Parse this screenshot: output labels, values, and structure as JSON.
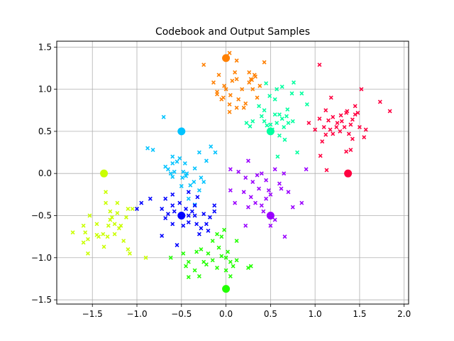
{
  "chart_data": {
    "type": "scatter",
    "title": "Codebook and Output Samples",
    "xlabel": "",
    "ylabel": "",
    "xlim": [
      -1.9,
      2.05
    ],
    "ylim": [
      -1.55,
      1.57
    ],
    "xticks": [
      -1.5,
      -1.0,
      -0.5,
      0.0,
      0.5,
      1.0,
      1.5,
      2.0
    ],
    "xtick_labels": [
      "−1.5",
      "−1.0",
      "−0.5",
      "0.0",
      "0.5",
      "1.0",
      "1.5",
      "2.0"
    ],
    "yticks": [
      -1.5,
      -1.0,
      -0.5,
      0.0,
      0.5,
      1.0,
      1.5
    ],
    "ytick_labels": [
      "−1.5",
      "−1.0",
      "−0.5",
      "0.0",
      "0.5",
      "1.0",
      "1.5"
    ],
    "grid": true,
    "series": [
      {
        "color": "#ff0040",
        "codeword": [
          1.37,
          0.0
        ],
        "samples": [
          [
            1.05,
            1.29
          ],
          [
            1.35,
            0.72
          ],
          [
            1.48,
            0.72
          ],
          [
            1.52,
            1.0
          ],
          [
            1.73,
            0.85
          ],
          [
            1.84,
            0.74
          ],
          [
            1.55,
            0.43
          ],
          [
            1.57,
            0.52
          ],
          [
            1.3,
            0.62
          ],
          [
            1.2,
            0.67
          ],
          [
            1.15,
            0.63
          ],
          [
            1.17,
            0.52
          ],
          [
            1.1,
            0.55
          ],
          [
            1.12,
            0.46
          ],
          [
            1.2,
            0.47
          ],
          [
            1.05,
            0.65
          ],
          [
            1.0,
            0.52
          ],
          [
            1.25,
            0.6
          ],
          [
            1.4,
            0.58
          ],
          [
            1.45,
            0.8
          ],
          [
            1.33,
            0.55
          ],
          [
            1.38,
            0.47
          ],
          [
            1.28,
            0.5
          ],
          [
            0.93,
            0.6
          ],
          [
            1.08,
            0.38
          ],
          [
            1.12,
            0.75
          ],
          [
            1.35,
            0.26
          ],
          [
            1.4,
            0.28
          ],
          [
            1.13,
            0.04
          ],
          [
            1.06,
            0.21
          ],
          [
            1.42,
            0.41
          ],
          [
            1.18,
            0.9
          ],
          [
            1.42,
            0.64
          ],
          [
            1.5,
            0.55
          ],
          [
            1.45,
            0.7
          ],
          [
            1.29,
            0.69
          ],
          [
            1.36,
            0.74
          ],
          [
            1.24,
            0.55
          ]
        ]
      },
      {
        "color": "#ff8000",
        "codeword": [
          0.0,
          1.37
        ],
        "samples": [
          [
            -0.25,
            1.29
          ],
          [
            0.04,
            1.43
          ],
          [
            0.12,
            1.34
          ],
          [
            0.26,
            1.2
          ],
          [
            0.43,
            1.32
          ],
          [
            0.28,
            1.12
          ],
          [
            0.1,
            1.2
          ],
          [
            0.33,
            1.15
          ],
          [
            -0.08,
            1.17
          ],
          [
            -0.14,
            1.08
          ],
          [
            -0.1,
            0.97
          ],
          [
            0.0,
            1.0
          ],
          [
            -0.03,
            0.9
          ],
          [
            0.05,
            0.93
          ],
          [
            0.12,
            1.12
          ],
          [
            0.26,
            1.08
          ],
          [
            0.3,
            1.0
          ],
          [
            0.22,
            0.83
          ],
          [
            0.18,
            1.0
          ],
          [
            0.35,
            0.9
          ],
          [
            0.12,
            0.78
          ],
          [
            0.04,
            0.73
          ],
          [
            -0.05,
            0.88
          ],
          [
            0.14,
            0.88
          ],
          [
            0.2,
            0.78
          ],
          [
            -0.1,
            0.94
          ],
          [
            0.38,
            1.04
          ],
          [
            0.29,
            1.11
          ],
          [
            0.32,
            1.17
          ],
          [
            0.07,
            1.1
          ],
          [
            0.04,
            0.82
          ],
          [
            -0.02,
            1.04
          ]
        ]
      },
      {
        "color": "#00ff9f",
        "codeword": [
          0.5,
          0.5
        ],
        "samples": [
          [
            0.45,
            1.07
          ],
          [
            0.63,
            1.03
          ],
          [
            0.74,
            0.95
          ],
          [
            0.76,
            1.08
          ],
          [
            0.85,
            0.95
          ],
          [
            0.91,
            0.82
          ],
          [
            0.69,
            0.76
          ],
          [
            0.55,
            0.88
          ],
          [
            0.55,
            0.7
          ],
          [
            0.6,
            0.7
          ],
          [
            0.5,
            0.58
          ],
          [
            0.4,
            0.68
          ],
          [
            0.37,
            0.8
          ],
          [
            0.43,
            0.62
          ],
          [
            0.52,
            0.52
          ],
          [
            0.57,
            0.6
          ],
          [
            0.6,
            0.45
          ],
          [
            0.65,
            0.55
          ],
          [
            0.68,
            0.68
          ],
          [
            0.75,
            0.62
          ],
          [
            0.8,
            0.25
          ],
          [
            0.58,
            0.2
          ],
          [
            0.66,
            0.4
          ],
          [
            0.7,
            0.6
          ],
          [
            0.3,
            0.62
          ],
          [
            0.23,
            0.6
          ],
          [
            0.27,
            0.56
          ],
          [
            0.49,
            0.92
          ],
          [
            0.57,
            1.0
          ],
          [
            0.43,
            0.75
          ],
          [
            0.46,
            0.57
          ],
          [
            0.63,
            0.65
          ]
        ]
      },
      {
        "color": "#00c3ff",
        "codeword": [
          -0.5,
          0.5
        ],
        "samples": [
          [
            -0.7,
            0.67
          ],
          [
            -0.88,
            0.3
          ],
          [
            -0.82,
            0.28
          ],
          [
            -0.6,
            0.2
          ],
          [
            -0.52,
            0.18
          ],
          [
            -0.46,
            0.12
          ],
          [
            -0.6,
            0.12
          ],
          [
            -0.65,
            0.05
          ],
          [
            -0.58,
            0.02
          ],
          [
            -0.44,
            0.0
          ],
          [
            -0.35,
            0.06
          ],
          [
            -0.22,
            0.15
          ],
          [
            -0.3,
            0.25
          ],
          [
            -0.17,
            0.32
          ],
          [
            -0.12,
            0.25
          ],
          [
            -0.45,
            -0.03
          ],
          [
            -0.49,
            -0.05
          ],
          [
            -0.36,
            -0.1
          ],
          [
            -0.28,
            -0.05
          ],
          [
            -0.5,
            -0.15
          ],
          [
            -0.3,
            -0.2
          ],
          [
            -0.25,
            -0.1
          ],
          [
            -0.42,
            -0.3
          ],
          [
            -0.35,
            -0.37
          ],
          [
            -0.6,
            -0.04
          ],
          [
            -0.68,
            0.08
          ],
          [
            -0.4,
            -0.14
          ],
          [
            -0.48,
            0.02
          ],
          [
            -0.55,
            0.14
          ],
          [
            -0.62,
            0.0
          ]
        ]
      },
      {
        "color": "#0000ff",
        "codeword": [
          -0.5,
          -0.5
        ],
        "samples": [
          [
            -0.95,
            -0.35
          ],
          [
            -1.0,
            -0.42
          ],
          [
            -0.85,
            -0.3
          ],
          [
            -0.68,
            -0.3
          ],
          [
            -0.72,
            -0.42
          ],
          [
            -0.65,
            -0.48
          ],
          [
            -0.6,
            -0.38
          ],
          [
            -0.58,
            -0.45
          ],
          [
            -0.68,
            -0.53
          ],
          [
            -0.6,
            -0.6
          ],
          [
            -0.45,
            -0.42
          ],
          [
            -0.42,
            -0.5
          ],
          [
            -0.38,
            -0.45
          ],
          [
            -0.35,
            -0.5
          ],
          [
            -0.33,
            -0.6
          ],
          [
            -0.28,
            -0.65
          ],
          [
            -0.22,
            -0.6
          ],
          [
            -0.2,
            -0.68
          ],
          [
            -0.18,
            -0.52
          ],
          [
            -0.25,
            -0.48
          ],
          [
            -0.13,
            -0.45
          ],
          [
            -0.13,
            -0.38
          ],
          [
            -0.32,
            -0.28
          ],
          [
            -0.42,
            -0.22
          ],
          [
            -0.55,
            -0.85
          ],
          [
            -0.72,
            -0.74
          ],
          [
            -0.52,
            -0.35
          ],
          [
            -0.48,
            -0.62
          ],
          [
            -0.3,
            -0.72
          ],
          [
            -0.6,
            -0.25
          ],
          [
            -0.42,
            -0.58
          ],
          [
            -0.35,
            -0.38
          ]
        ]
      },
      {
        "color": "#9a00ff",
        "codeword": [
          0.5,
          -0.5
        ],
        "samples": [
          [
            0.05,
            0.05
          ],
          [
            0.14,
            0.02
          ],
          [
            0.22,
            -0.05
          ],
          [
            0.25,
            0.15
          ],
          [
            0.3,
            -0.1
          ],
          [
            0.35,
            -0.02
          ],
          [
            0.4,
            0.0
          ],
          [
            0.45,
            -0.08
          ],
          [
            0.55,
            0.05
          ],
          [
            0.6,
            -0.12
          ],
          [
            0.62,
            -0.18
          ],
          [
            0.7,
            -0.22
          ],
          [
            0.5,
            -0.25
          ],
          [
            0.45,
            -0.3
          ],
          [
            0.4,
            -0.38
          ],
          [
            0.33,
            -0.35
          ],
          [
            0.28,
            -0.28
          ],
          [
            0.2,
            -0.22
          ],
          [
            0.05,
            -0.2
          ],
          [
            0.1,
            -0.35
          ],
          [
            0.22,
            -0.62
          ],
          [
            0.5,
            -0.62
          ],
          [
            0.66,
            -0.75
          ],
          [
            0.55,
            -0.55
          ],
          [
            0.75,
            -0.4
          ],
          [
            0.85,
            -0.35
          ],
          [
            0.9,
            0.05
          ],
          [
            0.65,
            0.0
          ],
          [
            0.37,
            -0.18
          ],
          [
            0.48,
            -0.2
          ],
          [
            0.25,
            -0.4
          ],
          [
            0.42,
            -0.45
          ]
        ]
      },
      {
        "color": "#22ff00",
        "codeword": [
          0.0,
          -1.37
        ],
        "samples": [
          [
            -0.62,
            -1.0
          ],
          [
            -0.48,
            -0.95
          ],
          [
            -0.42,
            -1.05
          ],
          [
            -0.33,
            -0.93
          ],
          [
            -0.28,
            -0.9
          ],
          [
            -0.2,
            -0.95
          ],
          [
            -0.25,
            -1.05
          ],
          [
            -0.15,
            -1.03
          ],
          [
            -0.08,
            -0.88
          ],
          [
            -0.05,
            -0.98
          ],
          [
            0.0,
            -1.0
          ],
          [
            0.05,
            -1.05
          ],
          [
            0.08,
            -1.1
          ],
          [
            0.12,
            -1.03
          ],
          [
            0.25,
            -1.12
          ],
          [
            0.28,
            -1.1
          ],
          [
            0.0,
            -1.15
          ],
          [
            -0.1,
            -1.12
          ],
          [
            -0.3,
            -1.22
          ],
          [
            -0.42,
            -1.23
          ],
          [
            -0.45,
            -1.1
          ],
          [
            -0.35,
            -1.15
          ],
          [
            0.05,
            -1.22
          ],
          [
            -0.05,
            -0.75
          ],
          [
            -0.1,
            -0.72
          ],
          [
            -0.02,
            -0.67
          ],
          [
            -0.15,
            -0.8
          ],
          [
            0.02,
            -0.93
          ],
          [
            0.12,
            -0.8
          ],
          [
            -0.22,
            -1.08
          ]
        ]
      },
      {
        "color": "#caff00",
        "codeword": [
          -1.37,
          0.0
        ],
        "samples": [
          [
            -1.72,
            -0.7
          ],
          [
            -1.6,
            -0.62
          ],
          [
            -1.58,
            -0.7
          ],
          [
            -1.55,
            -0.78
          ],
          [
            -1.6,
            -0.82
          ],
          [
            -1.55,
            -0.95
          ],
          [
            -1.45,
            -0.73
          ],
          [
            -1.43,
            -0.75
          ],
          [
            -1.38,
            -0.72
          ],
          [
            -1.37,
            -0.87
          ],
          [
            -1.33,
            -0.75
          ],
          [
            -1.25,
            -0.72
          ],
          [
            -1.2,
            -0.65
          ],
          [
            -1.18,
            -0.62
          ],
          [
            -1.25,
            -0.6
          ],
          [
            -1.32,
            -0.62
          ],
          [
            -1.3,
            -0.55
          ],
          [
            -1.28,
            -0.52
          ],
          [
            -1.22,
            -0.47
          ],
          [
            -1.12,
            -0.52
          ],
          [
            -1.1,
            -0.42
          ],
          [
            -1.05,
            -0.42
          ],
          [
            -1.15,
            -0.8
          ],
          [
            -1.1,
            -0.9
          ],
          [
            -1.08,
            -0.95
          ],
          [
            -0.9,
            -1.0
          ],
          [
            -1.35,
            -0.22
          ],
          [
            -1.22,
            -0.35
          ],
          [
            -1.35,
            -0.35
          ],
          [
            -1.53,
            -0.5
          ],
          [
            -1.3,
            -0.45
          ],
          [
            -1.45,
            -0.6
          ]
        ]
      }
    ]
  }
}
